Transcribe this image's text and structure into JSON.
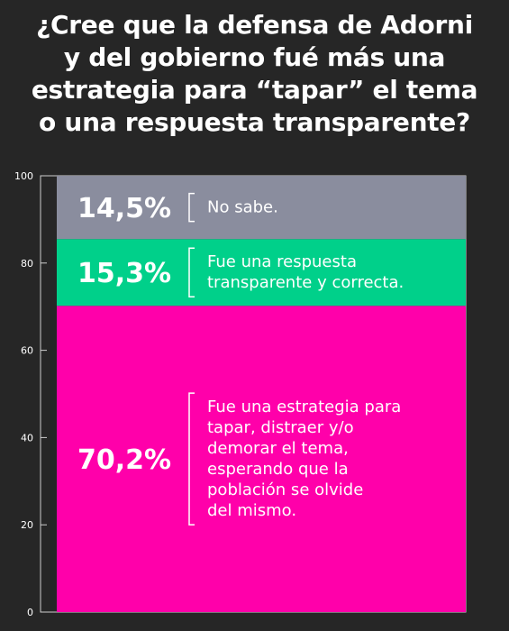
{
  "title_lines": [
    "¿Cree que la defensa de Adorni",
    "y del gobierno fué más una",
    "estrategia para “tapar” el tema",
    "o una respuesta transparente?"
  ],
  "chart_data": {
    "type": "bar",
    "stacked": true,
    "ylim": [
      0,
      100
    ],
    "yticks": [
      "0",
      "20",
      "40",
      "60",
      "80",
      "100"
    ],
    "segments": [
      {
        "value": 70.2,
        "label": "70,2%",
        "description": [
          "Fue una estrategia para",
          "tapar, distraer y/o",
          "demorar el tema,",
          "esperando que la",
          "población se olvide",
          "del mismo."
        ],
        "color": "#ff00aa"
      },
      {
        "value": 15.3,
        "label": "15,3%",
        "description": [
          "Fue una respuesta",
          "transparente y correcta."
        ],
        "color": "#00d08a"
      },
      {
        "value": 14.5,
        "label": "14,5%",
        "description": [
          "No sabe."
        ],
        "color": "#8a8d9e"
      }
    ]
  }
}
